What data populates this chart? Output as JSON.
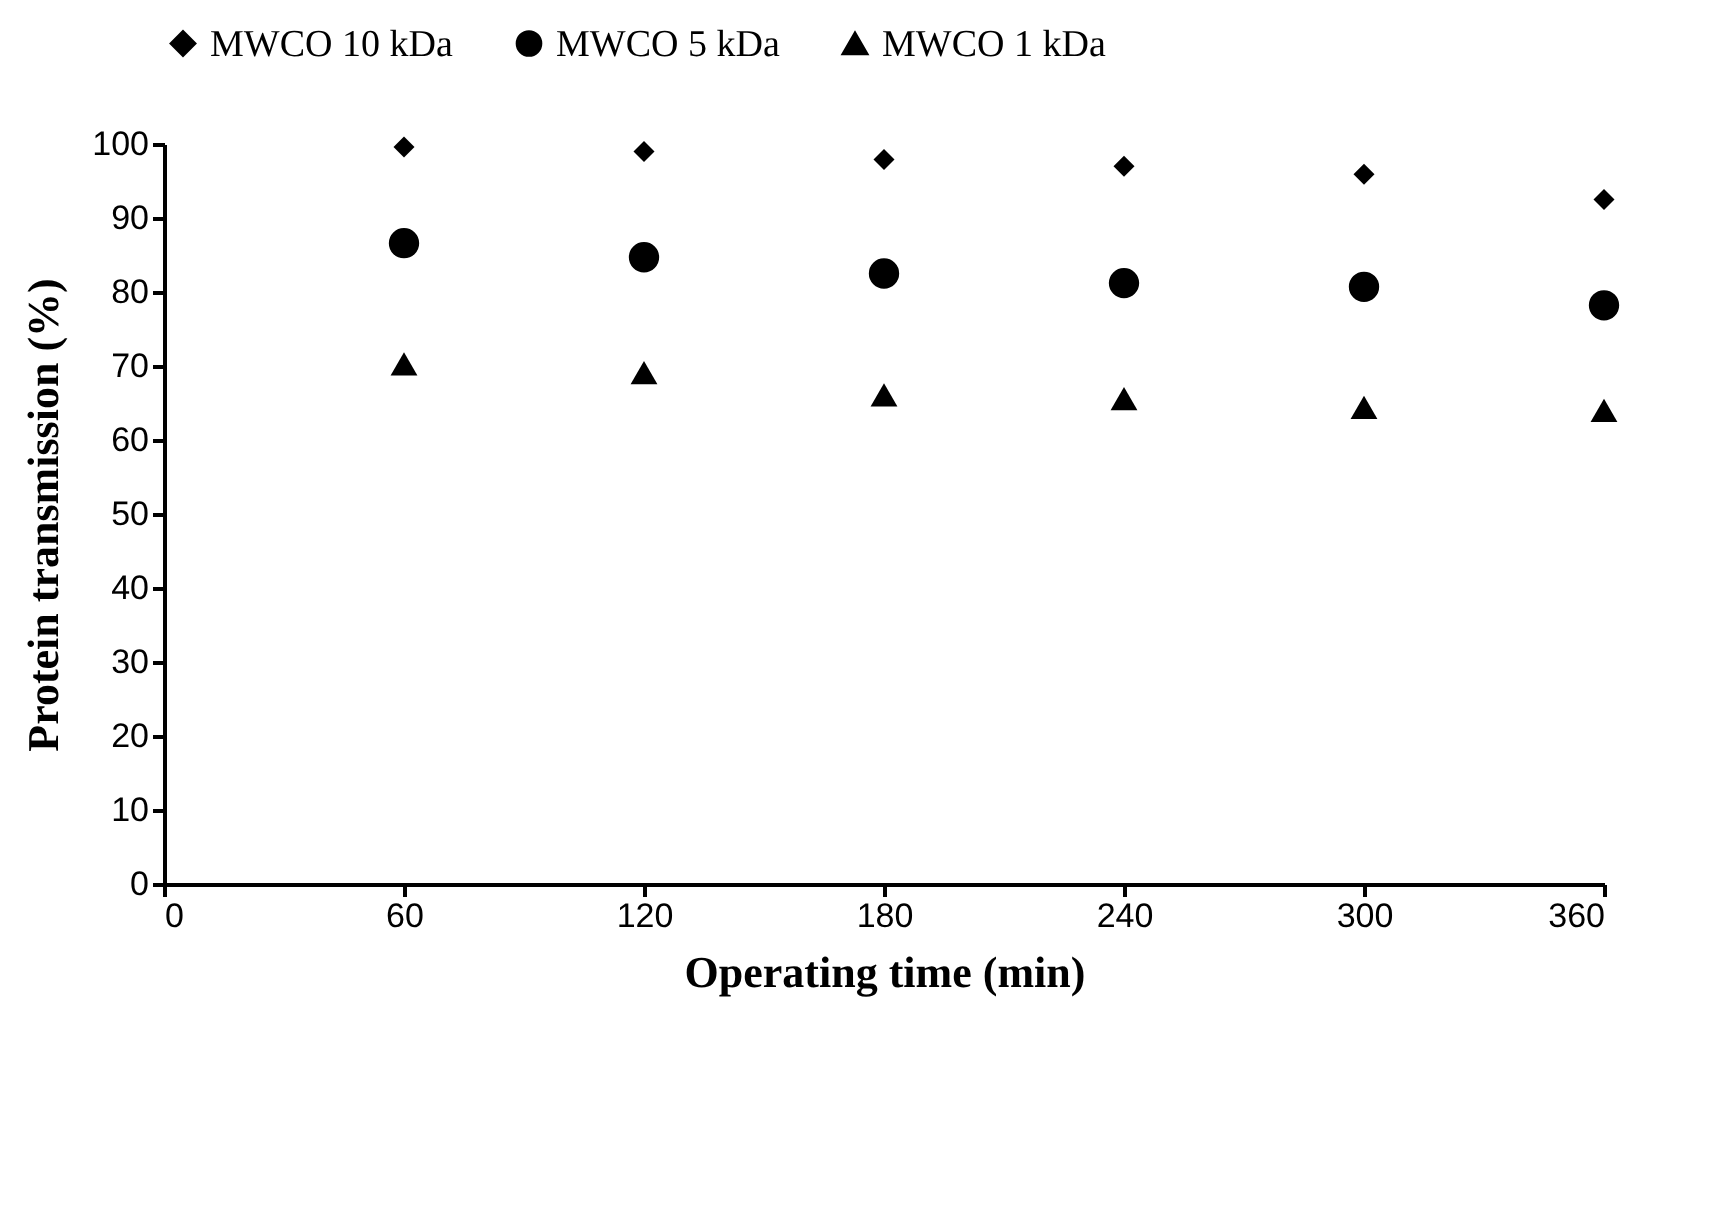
{
  "chart_data": {
    "type": "scatter",
    "xlabel": "Operating time (min)",
    "ylabel": "Protein transmission (%)",
    "x": [
      60,
      120,
      180,
      240,
      300,
      360
    ],
    "series": [
      {
        "name": "MWCO 10 kDa",
        "color": "#000000",
        "marker": "diamond",
        "values": [
          99.6,
          99.0,
          97.9,
          97.0,
          95.9,
          92.5
        ]
      },
      {
        "name": "MWCO 5 kDa",
        "color": "#000000",
        "marker": "circle",
        "values": [
          86.6,
          84.7,
          82.5,
          81.2,
          80.7,
          78.2
        ]
      },
      {
        "name": "MWCO 1 kDa",
        "color": "#000000",
        "marker": "triangle",
        "values": [
          70.3,
          69.1,
          66.1,
          65.6,
          64.4,
          64.0
        ]
      }
    ],
    "xlim": [
      0,
      360
    ],
    "xticks": [
      0,
      60,
      120,
      180,
      240,
      300,
      360
    ],
    "ylim": [
      0,
      100
    ],
    "yticks": [
      0,
      10,
      20,
      30,
      40,
      50,
      60,
      70,
      80,
      90,
      100
    ],
    "grid": false,
    "legend": "top"
  }
}
